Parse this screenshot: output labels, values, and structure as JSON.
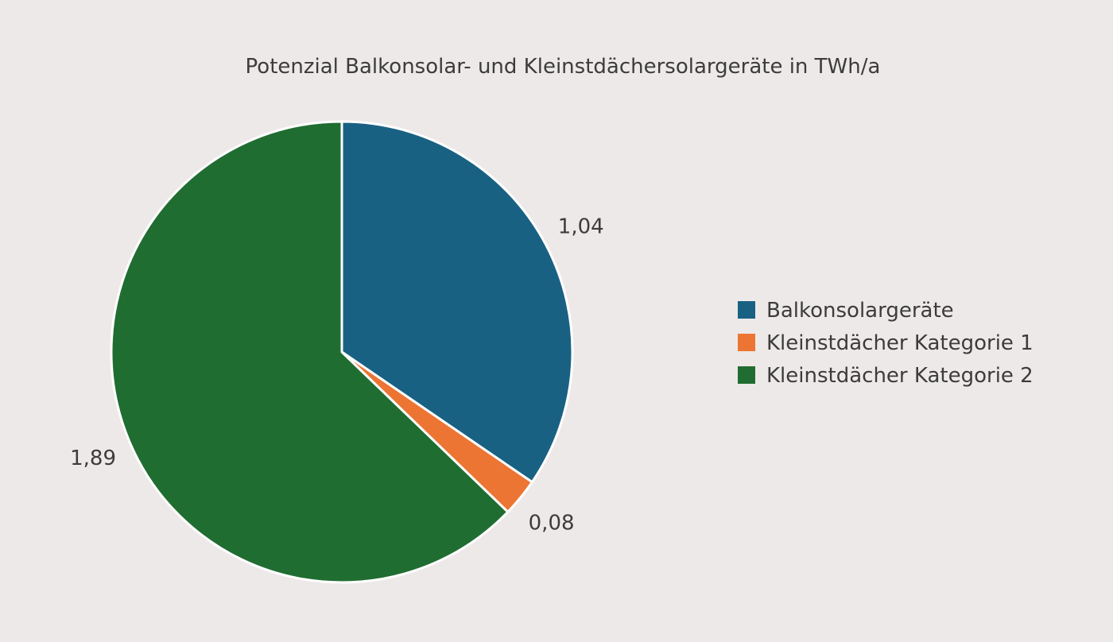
{
  "chart_data": {
    "type": "pie",
    "title": "Potenzial Balkonsolar- und Kleinstdächersolargeräte in TWh/a",
    "categories": [
      "Balkonsolargeräte",
      "Kleinstdächer Kategorie 1",
      "Kleinstdächer Kategorie 2"
    ],
    "values": [
      1.04,
      0.08,
      1.89
    ],
    "value_labels": [
      "1,04",
      "0,08",
      "1,89"
    ],
    "colors": [
      "#196183",
      "#ec7533",
      "#206d31"
    ],
    "slice_border_color": "#ffffff",
    "legend_position": "right",
    "start_angle": "12 o'clock",
    "direction": "clockwise"
  }
}
